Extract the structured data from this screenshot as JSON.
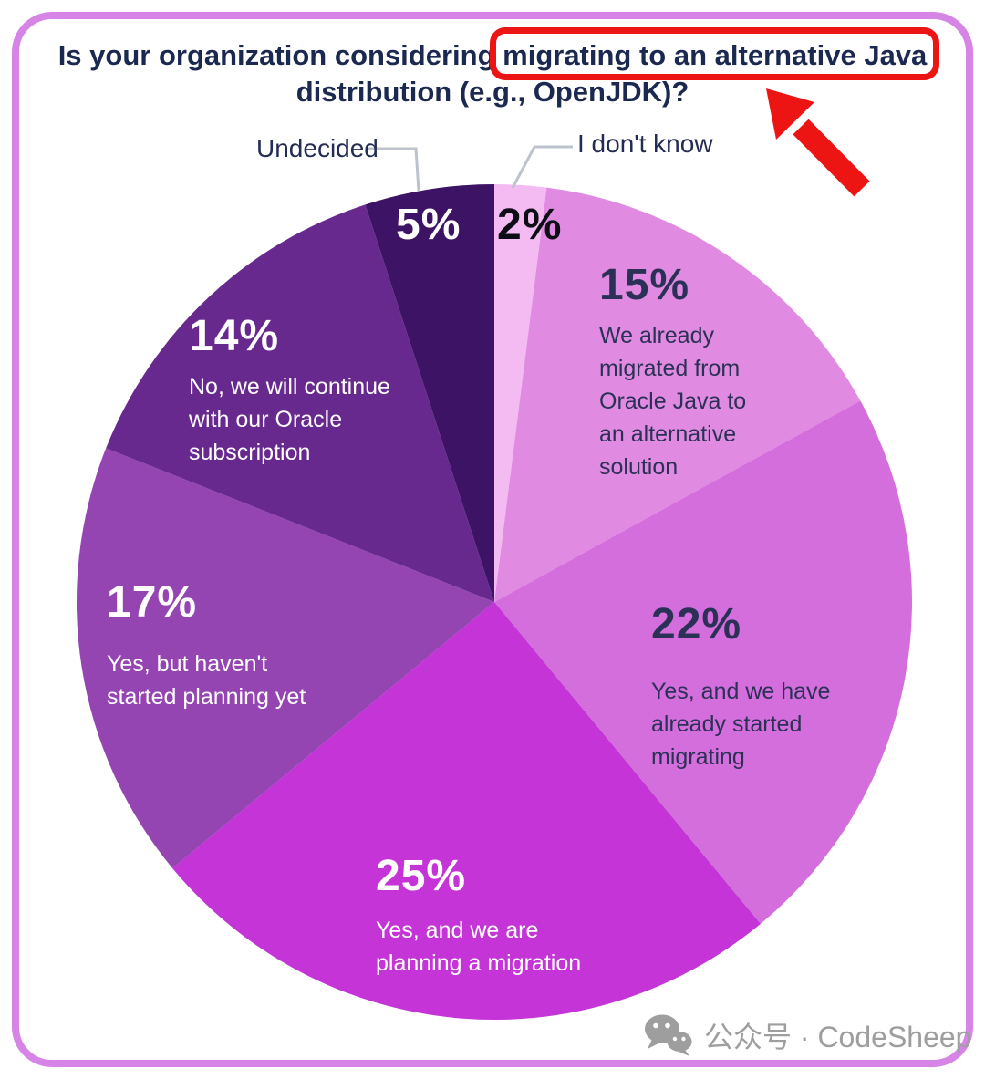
{
  "title": {
    "pre": "Is your organization considering ",
    "highlight": "migrating to an alternative Java",
    "line2": "distribution (e.g., OpenJDK)?"
  },
  "chart_data": {
    "type": "pie",
    "title": "Is your organization considering migrating to an alternative Java distribution (e.g., OpenJDK)?",
    "unit": "%",
    "direction": "clockwise",
    "start_angle_deg": 0,
    "center": [
      542,
      660
    ],
    "radius": 458,
    "segments": [
      {
        "label": "I don't know",
        "value": 2,
        "pct_label": "2%",
        "color": "#f3bbf1",
        "label_placement": "callout"
      },
      {
        "label": "We already migrated from Oracle Java to an alternative solution",
        "value": 15,
        "pct_label": "15%",
        "color": "#e08ae2",
        "label_placement": "inside"
      },
      {
        "label": "Yes, and we have already started migrating",
        "value": 22,
        "pct_label": "22%",
        "color": "#d56edd",
        "label_placement": "inside"
      },
      {
        "label": "Yes, and we are planning a migration",
        "value": 25,
        "pct_label": "25%",
        "color": "#c434d6",
        "label_placement": "inside"
      },
      {
        "label": "Yes, but haven't started planning yet",
        "value": 17,
        "pct_label": "17%",
        "color": "#9445b2",
        "label_placement": "inside"
      },
      {
        "label": "No, we will continue with our Oracle subscription",
        "value": 14,
        "pct_label": "14%",
        "color": "#68298e",
        "label_placement": "inside"
      },
      {
        "label": "Undecided",
        "value": 5,
        "pct_label": "5%",
        "color": "#3d1365",
        "label_placement": "callout"
      }
    ]
  },
  "colors": {
    "text_navy": "#2b3156",
    "text_black": "#0c0d15",
    "text_white": "#ffffff",
    "title_navy": "#1b2950",
    "watermark_gray": "#9e9e9e",
    "frame_border": "#d684e6",
    "annotation_red": "#ed1414",
    "callout_line": "#bcc3cd"
  },
  "watermark": {
    "text": "公众号 · CodeSheep"
  }
}
